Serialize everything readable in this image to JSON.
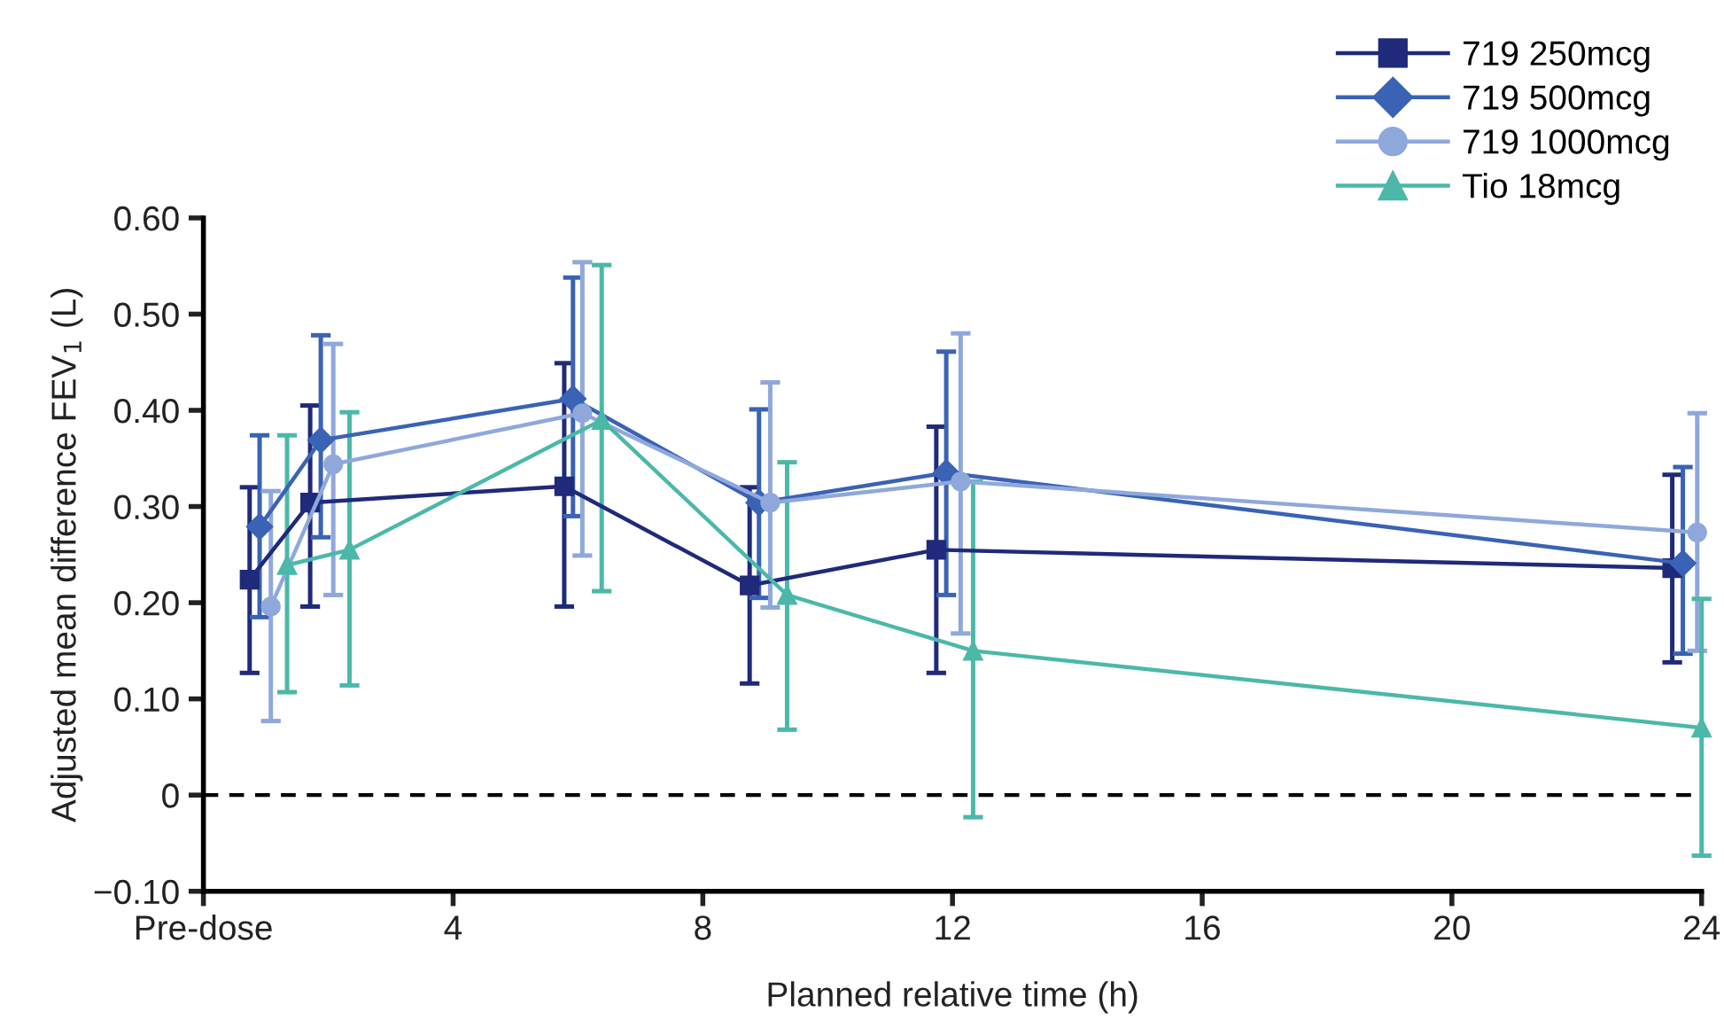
{
  "chart_data": {
    "type": "line",
    "xlabel": "Planned relative time (h)",
    "ylabel": "Adjusted mean difference FEV$_{1}$ (L)",
    "xlim": [
      0,
      24
    ],
    "xticks": [
      {
        "value": 0,
        "label": "Pre-dose"
      },
      4,
      8,
      12,
      16,
      20,
      24
    ],
    "ylim": [
      -0.1,
      0.6
    ],
    "yticks": [
      {
        "value": -0.1,
        "label": "−0.10"
      },
      0,
      {
        "value": 0.1,
        "label": "0.10"
      },
      {
        "value": 0.2,
        "label": "0.20"
      },
      {
        "value": 0.3,
        "label": "0.30"
      },
      {
        "value": 0.4,
        "label": "0.40"
      },
      {
        "value": 0.5,
        "label": "0.50"
      },
      {
        "value": 0.6,
        "label": "0.60"
      }
    ],
    "grid": false,
    "legend": "top right",
    "ref_lines": [
      {
        "axis": "y",
        "value": 0,
        "color": "#000000",
        "line_style": "dashed"
      }
    ],
    "series": [
      {
        "name": "719 250mcg",
        "color": "#1f2a7a",
        "marker": "square",
        "x": [
          0.74,
          1.71,
          5.78,
          8.75,
          11.74,
          23.53
        ],
        "values": [
          0.224,
          0.304,
          0.321,
          0.218,
          0.255,
          0.236
        ],
        "errors": [
          [
            0.127,
            0.32
          ],
          [
            0.196,
            0.405
          ],
          [
            0.196,
            0.449
          ],
          [
            0.116,
            0.32
          ],
          [
            0.127,
            0.383
          ],
          [
            0.138,
            0.333
          ]
        ]
      },
      {
        "name": "719 500mcg",
        "color": "#3a62b5",
        "marker": "diamond",
        "x": [
          0.9,
          1.88,
          5.92,
          8.9,
          11.9,
          23.7
        ],
        "values": [
          0.279,
          0.369,
          0.412,
          0.304,
          0.335,
          0.241
        ],
        "errors": [
          [
            0.185,
            0.374
          ],
          [
            0.268,
            0.478
          ],
          [
            0.29,
            0.538
          ],
          [
            0.205,
            0.401
          ],
          [
            0.208,
            0.461
          ],
          [
            0.147,
            0.341
          ]
        ]
      },
      {
        "name": "719 1000mcg",
        "color": "#8fa8dc",
        "marker": "circle",
        "x": [
          1.08,
          2.08,
          6.07,
          9.08,
          12.13,
          23.93
        ],
        "values": [
          0.196,
          0.344,
          0.397,
          0.304,
          0.326,
          0.273
        ],
        "errors": [
          [
            0.077,
            0.316
          ],
          [
            0.208,
            0.469
          ],
          [
            0.249,
            0.554
          ],
          [
            0.195,
            0.429
          ],
          [
            0.168,
            0.48
          ],
          [
            0.15,
            0.397
          ]
        ]
      },
      {
        "name": "Tio 18mcg",
        "color": "#4bb8a9",
        "marker": "triangle",
        "x": [
          1.34,
          2.34,
          6.38,
          9.35,
          12.33,
          24
        ],
        "values": [
          0.239,
          0.255,
          0.39,
          0.208,
          0.15,
          0.07
        ],
        "errors": [
          [
            0.107,
            0.374
          ],
          [
            0.114,
            0.398
          ],
          [
            0.212,
            0.551
          ],
          [
            0.068,
            0.346
          ],
          [
            -0.023,
            0.326
          ],
          [
            -0.063,
            0.204
          ]
        ]
      }
    ]
  }
}
